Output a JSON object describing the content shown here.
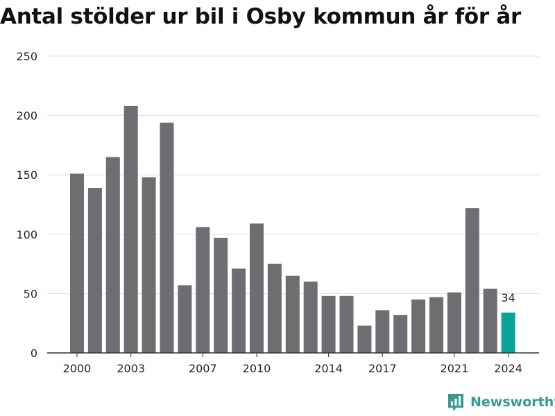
{
  "title": "Antal stölder ur bil i Osby kommun år för år",
  "brand": {
    "name": "Newsworthy",
    "icon": "newsworthy-logo-icon",
    "color": "#3a9a8f"
  },
  "colors": {
    "bar": "#6e6d72",
    "highlight": "#0aa396",
    "grid": "#dddddd",
    "axis": "#333333"
  },
  "chart_data": {
    "type": "bar",
    "categories": [
      "2000",
      "2001",
      "2002",
      "2003",
      "2004",
      "2005",
      "2006",
      "2007",
      "2008",
      "2009",
      "2010",
      "2011",
      "2012",
      "2013",
      "2014",
      "2015",
      "2016",
      "2017",
      "2018",
      "2019",
      "2020",
      "2021",
      "2022",
      "2023",
      "2024"
    ],
    "values": [
      151,
      139,
      165,
      208,
      148,
      194,
      57,
      106,
      97,
      71,
      109,
      75,
      65,
      60,
      48,
      48,
      23,
      36,
      32,
      45,
      47,
      51,
      122,
      54,
      34
    ],
    "x_tick_labels": [
      "2000",
      "2003",
      "2007",
      "2010",
      "2014",
      "2017",
      "2021",
      "2024"
    ],
    "y_ticks": [
      0,
      50,
      100,
      150,
      200,
      250
    ],
    "ylim": [
      0,
      250
    ],
    "highlight_category": "2024",
    "data_labels": [
      {
        "category": "2024",
        "text": "34"
      }
    ],
    "grid": true,
    "xlabel": "",
    "ylabel": ""
  }
}
